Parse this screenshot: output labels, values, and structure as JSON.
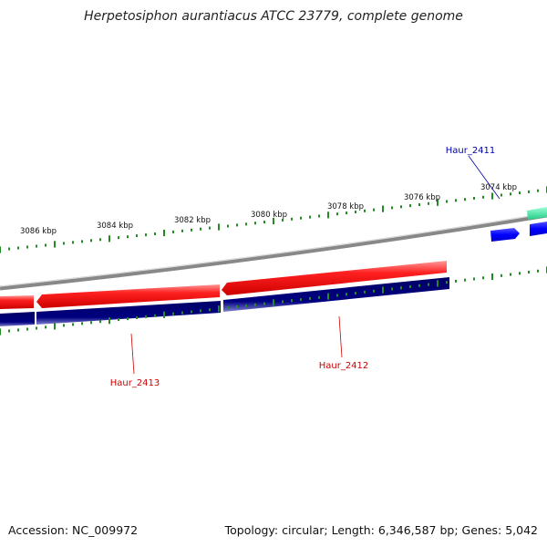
{
  "title": "Herpetosiphon aurantiacus ATCC 23779, complete genome",
  "accession": "Accession: NC_009972",
  "summary": "Topology: circular; Length: 6,346,587 bp; Genes: 5,042",
  "ticks": [
    {
      "label": "3086 kbp"
    },
    {
      "label": "3084 kbp"
    },
    {
      "label": "3082 kbp"
    },
    {
      "label": "3080 kbp"
    },
    {
      "label": "3078 kbp"
    },
    {
      "label": "3076 kbp"
    },
    {
      "label": "3074 kbp"
    }
  ],
  "genes": [
    {
      "name": "Haur_2411",
      "color": "#0000aa"
    },
    {
      "name": "Haur_2412",
      "color": "#cc0000"
    },
    {
      "name": "Haur_2413",
      "color": "#cc0000"
    }
  ],
  "colors": {
    "reverse_strand_gene": "#ff0000",
    "cds_track": "#000080",
    "forward_gene": "#0000ff",
    "rna_gene": "#33dd99",
    "ticks": "#228b22",
    "backbone": "#888888"
  }
}
